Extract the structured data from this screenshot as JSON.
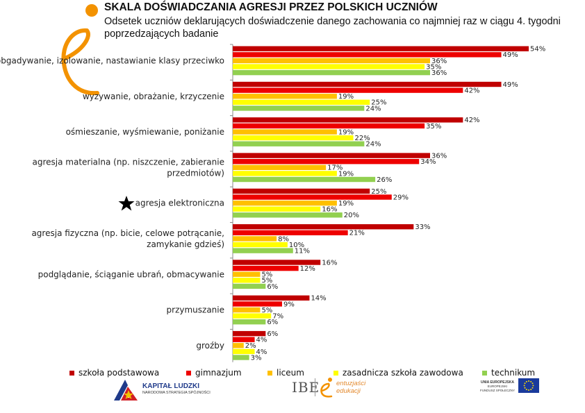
{
  "header": {
    "title": "SKALA DOŚWIADCZANIA AGRESJI PRZEZ POLSKICH UCZNIÓW",
    "subtitle": "Odsetek uczniów deklarujących doświadczenie danego zachowania co najmniej raz w ciągu 4. tygodni poprzedzających badanie"
  },
  "chart_data": {
    "type": "bar",
    "orientation": "horizontal",
    "categories": [
      "obgadywanie, izolowanie, nastawianie klasy przeciwko",
      "wyzywanie, obrażanie, krzyczenie",
      "ośmieszanie, wyśmiewanie, poniżanie",
      "agresja materialna (np. niszczenie, zabieranie przedmiotów)",
      "agresja elektroniczna",
      "agresja fizyczna (np. bicie, celowe potrącanie, zamykanie gdzieś)",
      "podglądanie, ściąganie ubrań, obmacywanie",
      "przymuszanie",
      "groźby"
    ],
    "category_lines": [
      [
        "obgadywanie, izolowanie, nastawianie klasy przeciwko"
      ],
      [
        "wyzywanie, obrażanie, krzyczenie"
      ],
      [
        "ośmieszanie, wyśmiewanie, poniżanie"
      ],
      [
        "agresja materialna (np. niszczenie, zabieranie",
        "przedmiotów)"
      ],
      [
        "agresja elektroniczna"
      ],
      [
        "agresja fizyczna (np. bicie, celowe potrącanie,",
        "zamykanie gdzieś)"
      ],
      [
        "podglądanie, ściąganie ubrań, obmacywanie"
      ],
      [
        "przymuszanie"
      ],
      [
        "groźby"
      ]
    ],
    "highlighted_category": "agresja elektroniczna",
    "series": [
      {
        "name": "szkoła podstawowa",
        "color": "#c00000",
        "values": [
          54,
          49,
          42,
          36,
          25,
          33,
          16,
          14,
          6
        ]
      },
      {
        "name": "gimnazjum",
        "color": "#ee0000",
        "values": [
          49,
          42,
          35,
          34,
          29,
          21,
          12,
          9,
          4
        ]
      },
      {
        "name": "liceum",
        "color": "#ffc000",
        "values": [
          36,
          19,
          19,
          17,
          19,
          8,
          5,
          5,
          2
        ]
      },
      {
        "name": "zasadnicza szkoła zawodowa",
        "color": "#ffff00",
        "values": [
          35,
          25,
          22,
          19,
          16,
          10,
          5,
          7,
          4
        ]
      },
      {
        "name": "technikum",
        "color": "#92d050",
        "values": [
          36,
          24,
          24,
          26,
          20,
          11,
          6,
          6,
          3
        ]
      }
    ],
    "value_suffix": "%",
    "xlim": [
      0,
      60
    ],
    "grid": false,
    "legend_position": "bottom"
  },
  "footer": {
    "kapital_title": "KAPITAŁ LUDZKI",
    "kapital_sub": "NARODOWA STRATEGIA SPÓJNOŚCI",
    "ibe": "IBE",
    "entuzjasci_line1": "entuzjaści",
    "entuzjasci_line2": "edukacji",
    "eu_line1": "UNIA EUROPEJSKA",
    "eu_line2": "EUROPEJSKI",
    "eu_line3": "FUNDUSZ SPOŁECZNY"
  }
}
